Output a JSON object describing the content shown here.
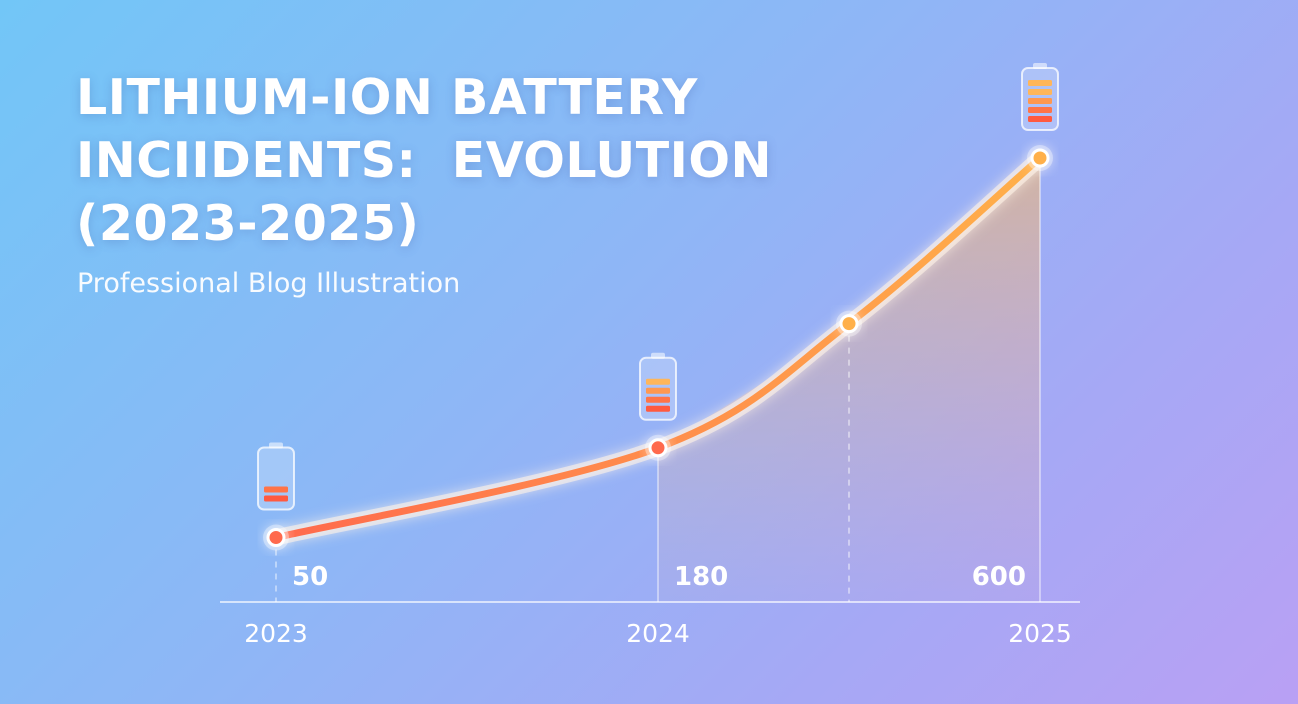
{
  "title_lines": [
    "LITHIUM-ION BATTERY",
    "INCIIDENTS:  EVOLUTION",
    "(2023-2025)"
  ],
  "subtitle": "Professional Blog Illustration",
  "colors": {
    "curve_start": "#ff6a4d",
    "curve_end": "#ffb04a",
    "axis": "#ffffff",
    "text": "#ffffff"
  },
  "chart_data": {
    "type": "line",
    "x": [
      2023,
      2024,
      2024.5,
      2025
    ],
    "y": [
      50,
      180,
      360,
      600
    ],
    "data_labels": [
      {
        "x": 2023,
        "text": "50"
      },
      {
        "x": 2024,
        "text": "180"
      },
      {
        "x": 2025,
        "text": "600"
      }
    ],
    "tick_labels": [
      "2023",
      "2024",
      "2025"
    ],
    "tick_values": [
      2023,
      2024,
      2025
    ],
    "battery_icons": [
      {
        "x": 2023,
        "level": 0.3
      },
      {
        "x": 2024,
        "level": 0.7
      },
      {
        "x": 2025,
        "level": 1.0
      }
    ],
    "xlim": [
      2023,
      2025
    ],
    "ylim": [
      0,
      600
    ],
    "grid": false,
    "legend": "none"
  }
}
